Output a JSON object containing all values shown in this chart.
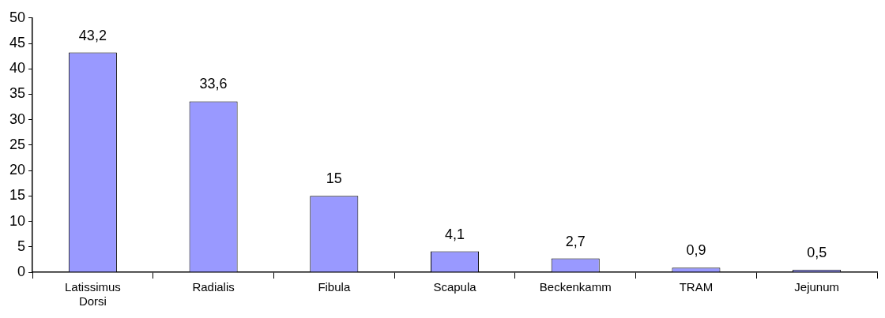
{
  "chart_data": {
    "type": "bar",
    "categories": [
      "Latissimus Dorsi",
      "Radialis",
      "Fibula",
      "Scapula",
      "Beckenkamm",
      "TRAM",
      "Jejunum"
    ],
    "values": [
      43.2,
      33.6,
      15,
      4.1,
      2.7,
      0.9,
      0.5
    ],
    "value_labels": [
      "43,2",
      "33,6",
      "15",
      "4,1",
      "2,7",
      "0,9",
      "0,5"
    ],
    "color": "#9999ff",
    "ylim": [
      0,
      50
    ],
    "yticks": [
      0,
      5,
      10,
      15,
      20,
      25,
      30,
      35,
      40,
      45,
      50
    ],
    "grid": false,
    "legend": false
  }
}
